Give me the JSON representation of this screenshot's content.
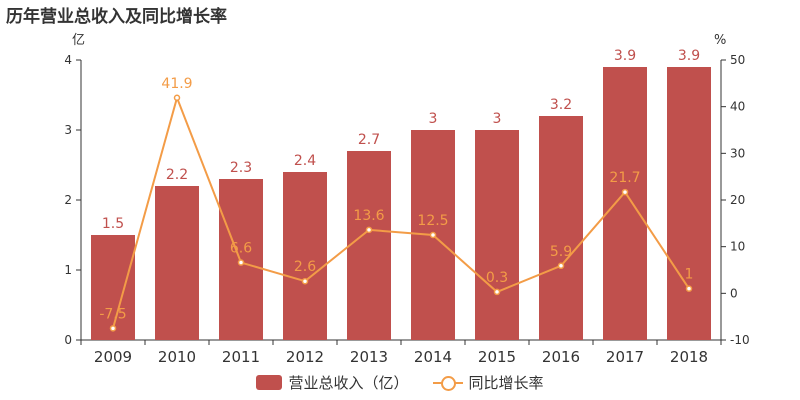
{
  "title": "历年营业总收入及同比增长率",
  "chart_data": {
    "type": "bar",
    "categories": [
      "2009",
      "2010",
      "2011",
      "2012",
      "2013",
      "2014",
      "2015",
      "2016",
      "2017",
      "2018"
    ],
    "series": [
      {
        "name": "营业总收入（亿）",
        "kind": "bar",
        "axis": "left",
        "color": "#c0504d",
        "values": [
          1.5,
          2.2,
          2.3,
          2.4,
          2.7,
          3,
          3,
          3.2,
          3.9,
          3.9
        ],
        "labels": [
          "1.5",
          "2.2",
          "2.3",
          "2.4",
          "2.7",
          "3",
          "3",
          "3.2",
          "3.9",
          "3.9"
        ]
      },
      {
        "name": "同比增长率",
        "kind": "line",
        "axis": "right",
        "color": "#f39c47",
        "values": [
          -7.5,
          41.9,
          6.6,
          2.6,
          13.6,
          12.5,
          0.3,
          5.9,
          21.7,
          1
        ],
        "labels": [
          "-7.5",
          "41.9",
          "6.6",
          "2.6",
          "13.6",
          "12.5",
          "0.3",
          "5.9",
          "21.7",
          "1"
        ]
      }
    ],
    "y_left": {
      "unit": "亿",
      "min": 0,
      "max": 4,
      "ticks": [
        "0",
        "1",
        "2",
        "3",
        "4"
      ]
    },
    "y_right": {
      "unit": "%",
      "min": -10,
      "max": 50,
      "ticks": [
        "-10",
        "0",
        "10",
        "20",
        "30",
        "40",
        "50"
      ]
    },
    "grid": false,
    "legend": "bottom-center"
  }
}
